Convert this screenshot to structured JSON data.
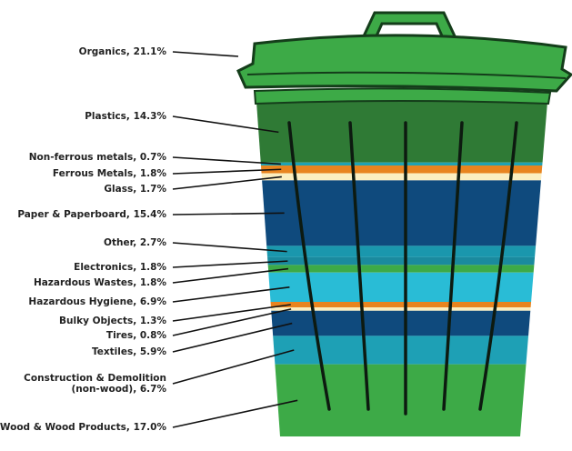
{
  "chart_data": {
    "type": "trash-can",
    "values": [
      21.1,
      14.3,
      0.7,
      1.8,
      1.7,
      15.4,
      2.7,
      1.8,
      1.8,
      6.9,
      1.3,
      0.8,
      5.9,
      6.7,
      17.0
    ],
    "value_labels": [
      "Organics, 21.1%",
      "Plastics, 14.3%",
      "Non-ferrous metals, 0.7%",
      "Ferrous Metals, 1.8%",
      "Glass, 1.7%",
      "Paper & Paperboard, 15.4%",
      "Other, 2.7%",
      "Electronics, 1.8%",
      "Hazardous Wastes, 1.8%",
      "Hazardous Hygiene, 6.9%",
      "Bulky Objects, 1.3%",
      "Tires, 0.8%",
      "Textiles, 5.9%",
      "Construction & Demolition\n(non-wood), 6.7%",
      "Wood & Wood Products, 17.0%"
    ],
    "colors": [
      "#3daa47",
      "#2f7a35",
      "#1fa2b4",
      "#e8841f",
      "#fbeec0",
      "#0f4a7d",
      "#1a97ad",
      "#1a8a9e",
      "#3daa47",
      "#29bcd6",
      "#e8841f",
      "#fbeec0",
      "#0f4a7d",
      "#1ea0b5",
      "#3daa47"
    ]
  }
}
